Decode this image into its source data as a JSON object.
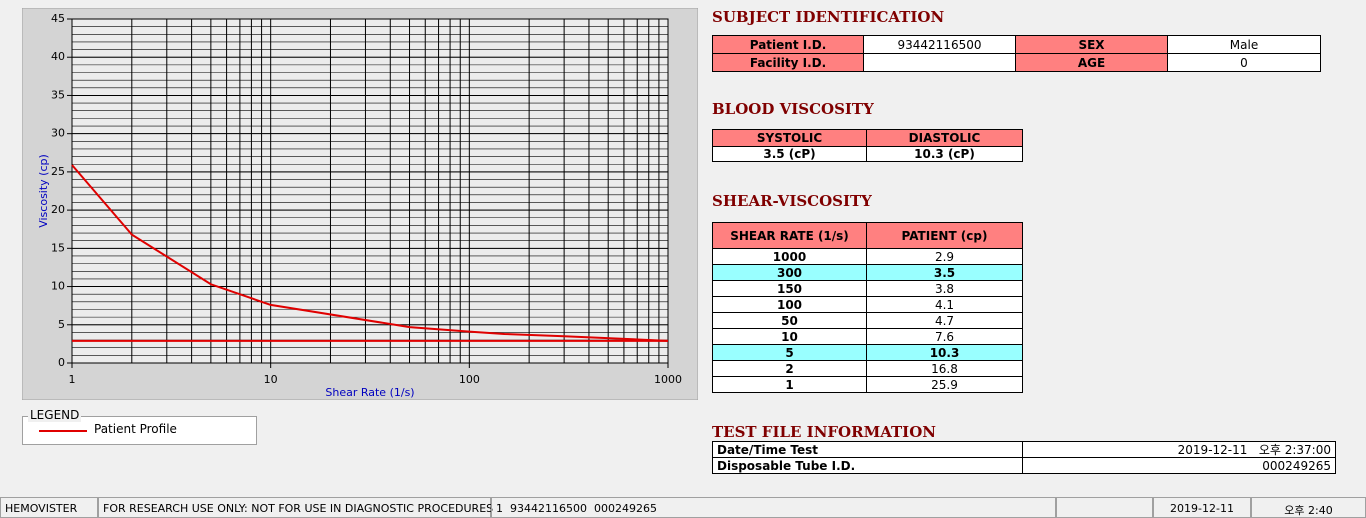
{
  "chart_data": {
    "type": "line",
    "x_label": "Shear Rate (1/s)",
    "y_label": "Viscosity (cp)",
    "x_scale": "log",
    "xlim": [
      1,
      1000
    ],
    "ylim": [
      0,
      45
    ],
    "xticks": [
      1,
      10,
      100,
      1000
    ],
    "yticks": [
      0,
      5,
      10,
      15,
      20,
      25,
      30,
      35,
      40,
      45
    ],
    "grid": true,
    "legend_title": "LEGEND",
    "series": [
      {
        "name": "Patient Profile",
        "color": "#e00000",
        "x": [
          1,
          2,
          5,
          10,
          50,
          100,
          150,
          300,
          1000
        ],
        "values": [
          25.9,
          16.8,
          10.3,
          7.6,
          4.7,
          4.1,
          3.8,
          3.5,
          2.9
        ]
      },
      {
        "color": "#e00000",
        "x": [
          1,
          1000
        ],
        "values": [
          2.9,
          2.9
        ]
      }
    ]
  },
  "subject": {
    "title": "SUBJECT IDENTIFICATION",
    "rows": [
      [
        "Patient I.D.",
        "93442116500",
        "SEX",
        "Male"
      ],
      [
        "Facility I.D.",
        null,
        "AGE",
        "0"
      ]
    ]
  },
  "blood": {
    "title": "BLOOD VISCOSITY",
    "headers": [
      "SYSTOLIC",
      "DIASTOLIC"
    ],
    "values": [
      "3.5 (cP)",
      "10.3 (cP)"
    ]
  },
  "shear": {
    "title": "SHEAR-VISCOSITY",
    "headers": [
      "SHEAR RATE (1/s)",
      "PATIENT (cp)"
    ],
    "rows": [
      [
        1000,
        2.9
      ],
      [
        300,
        3.5
      ],
      [
        150,
        3.8
      ],
      [
        100,
        4.1
      ],
      [
        50,
        4.7
      ],
      [
        10,
        7.6
      ],
      [
        5,
        10.3
      ],
      [
        2,
        16.8
      ],
      [
        1,
        25.9
      ]
    ],
    "highlighted": [
      1,
      6
    ],
    "highlight_color": "#99ffff"
  },
  "test": {
    "title": "TEST FILE INFORMATION",
    "rows": [
      [
        "Date/Time Test",
        "2019-12-11   오후 2:37:00"
      ],
      [
        "Disposable Tube I.D.",
        "000249265"
      ]
    ]
  },
  "status": [
    "HEMOVISTER",
    "FOR RESEARCH USE ONLY: NOT FOR USE IN DIAGNOSTIC PROCEDURES",
    "1  93442116500  000249265",
    "2019-12-11",
    "오후 2:40"
  ]
}
